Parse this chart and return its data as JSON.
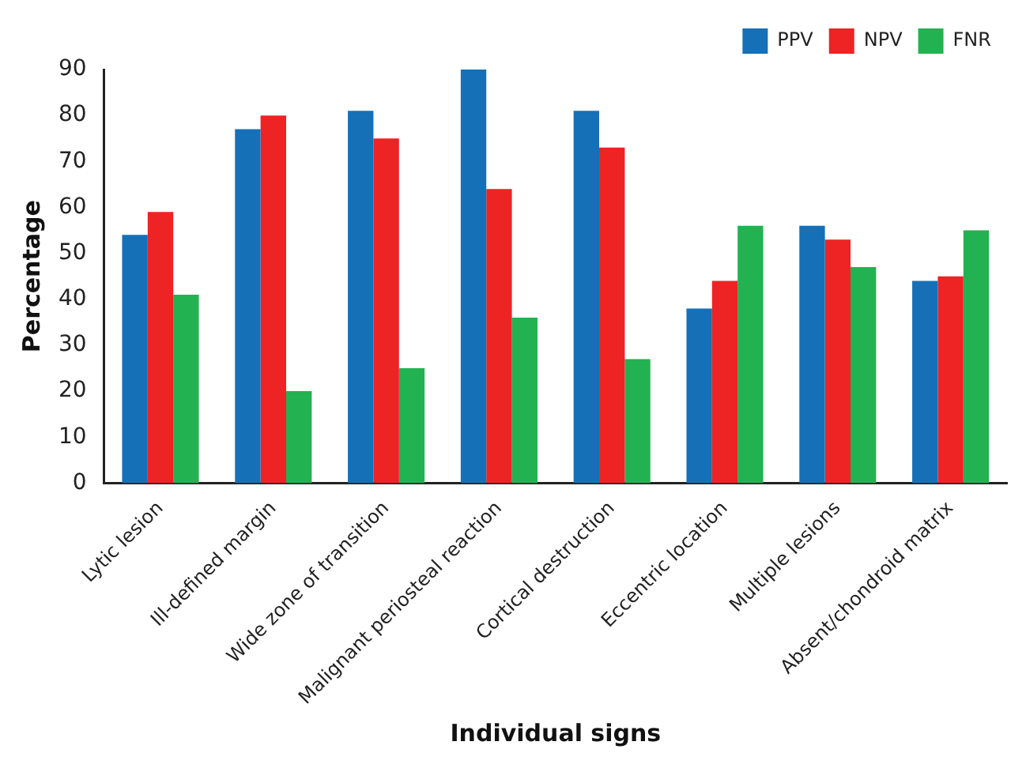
{
  "chart_data": {
    "type": "bar",
    "xlabel": "Individual signs",
    "ylabel": "Percentage",
    "categories": [
      "Lytic lesion",
      "Ill-defined margin",
      "Wide zone of transition",
      "Malignant periosteal reaction",
      "Cortical destruction",
      "Eccentric location",
      "Multiple lesions",
      "Absent/chondroid matrix"
    ],
    "series": [
      {
        "name": "PPV",
        "color": "#1570b8",
        "values": [
          54,
          77,
          81,
          90,
          81,
          38,
          56,
          44
        ]
      },
      {
        "name": "NPV",
        "color": "#ee2324",
        "values": [
          59,
          80,
          75,
          64,
          73,
          44,
          53,
          45
        ]
      },
      {
        "name": "FNR",
        "color": "#22b251",
        "values": [
          41,
          20,
          25,
          36,
          27,
          56,
          47,
          55
        ]
      }
    ],
    "ylim": [
      0,
      90
    ],
    "yticks": [
      0,
      10,
      20,
      30,
      40,
      50,
      60,
      70,
      80,
      90
    ],
    "grid": false,
    "legend": "top right"
  }
}
